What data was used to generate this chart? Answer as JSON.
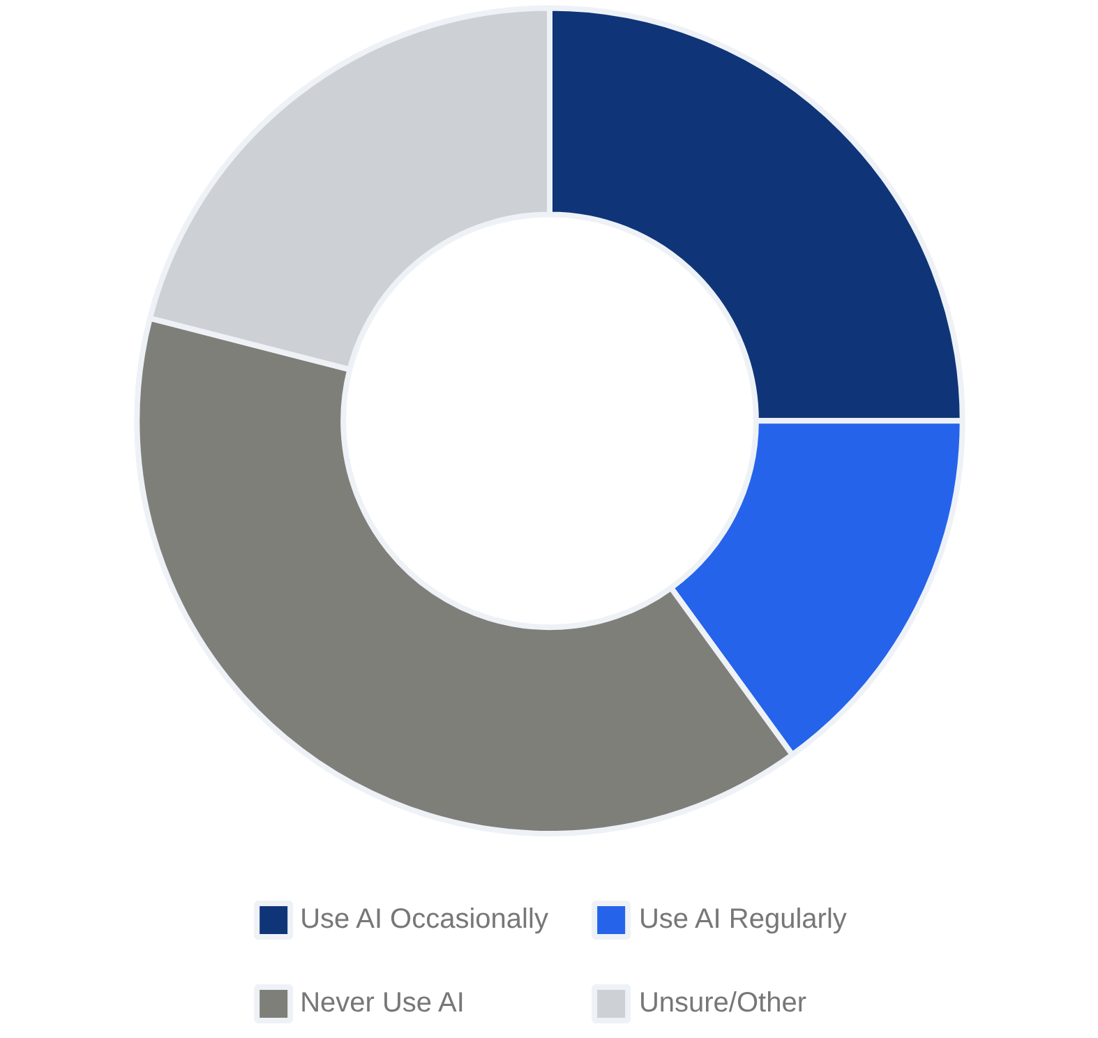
{
  "chart_data": {
    "type": "donut",
    "categories": [
      "Use AI Occasionally",
      "Use AI Regularly",
      "Never Use AI",
      "Unsure/Other"
    ],
    "values": [
      25,
      15,
      39,
      21
    ],
    "colors": [
      "#0f3578",
      "#2563eb",
      "#7f7f7a",
      "#cdd1d6"
    ],
    "legend": "bottom"
  }
}
